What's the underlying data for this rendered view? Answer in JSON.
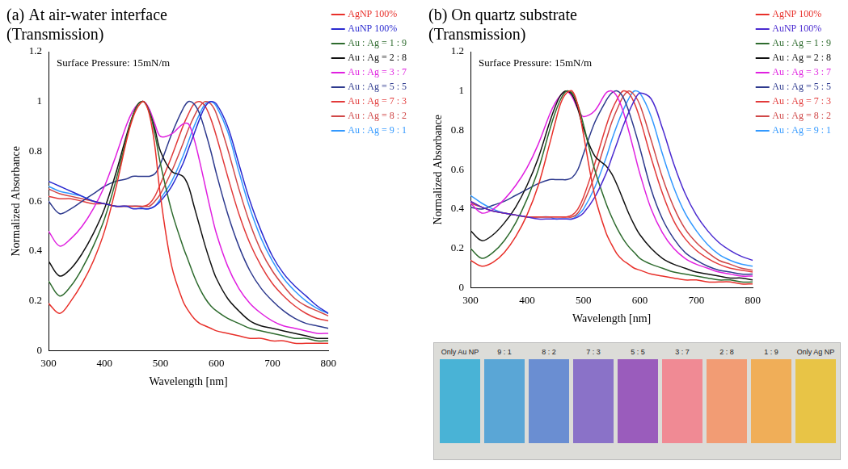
{
  "chart_data": [
    {
      "type": "line",
      "title": [
        "(a) At air-water interface",
        "(Transmission)"
      ],
      "annotation": "Surface Pressure: 15mN/m",
      "x_label": "Wavelength [nm]",
      "y_label": "Normalized Absorbance",
      "xlim": [
        300,
        800
      ],
      "xticks": [
        300,
        400,
        500,
        600,
        700,
        800
      ],
      "ylim": [
        0,
        1.2
      ],
      "yticks": [
        0,
        0.2,
        0.4,
        0.6,
        0.8,
        1,
        1.2
      ],
      "grid": false,
      "legend": "right",
      "x": [
        300,
        320,
        340,
        360,
        380,
        400,
        420,
        440,
        450,
        460,
        470,
        480,
        490,
        500,
        520,
        540,
        550,
        560,
        570,
        580,
        590,
        600,
        620,
        640,
        660,
        680,
        700,
        720,
        740,
        760,
        780,
        800
      ],
      "series": [
        {
          "name": "AgNP 100%",
          "color": "#e8302a",
          "values": [
            0.19,
            0.15,
            0.2,
            0.27,
            0.36,
            0.48,
            0.65,
            0.85,
            0.93,
            0.98,
            1.0,
            0.95,
            0.82,
            0.62,
            0.34,
            0.2,
            0.16,
            0.13,
            0.11,
            0.1,
            0.09,
            0.08,
            0.07,
            0.06,
            0.05,
            0.05,
            0.04,
            0.04,
            0.03,
            0.03,
            0.03,
            0.03
          ]
        },
        {
          "name": "AuNP 100%",
          "color": "#2a2ad0",
          "values": [
            0.68,
            0.66,
            0.64,
            0.62,
            0.6,
            0.59,
            0.58,
            0.58,
            0.57,
            0.57,
            0.57,
            0.57,
            0.58,
            0.6,
            0.66,
            0.75,
            0.81,
            0.87,
            0.93,
            0.98,
            1.0,
            0.99,
            0.9,
            0.75,
            0.6,
            0.48,
            0.38,
            0.31,
            0.26,
            0.22,
            0.18,
            0.15
          ]
        },
        {
          "name": "Au : Ag = 1 : 9",
          "color": "#2e6b2e",
          "values": [
            0.28,
            0.22,
            0.26,
            0.33,
            0.42,
            0.53,
            0.68,
            0.86,
            0.94,
            0.99,
            1.0,
            0.96,
            0.87,
            0.75,
            0.56,
            0.42,
            0.36,
            0.3,
            0.25,
            0.21,
            0.18,
            0.16,
            0.13,
            0.11,
            0.09,
            0.08,
            0.07,
            0.06,
            0.05,
            0.05,
            0.04,
            0.04
          ]
        },
        {
          "name": "Au : Ag = 2 : 8",
          "color": "#111111",
          "values": [
            0.36,
            0.3,
            0.33,
            0.39,
            0.47,
            0.57,
            0.71,
            0.87,
            0.94,
            0.99,
            1.0,
            0.96,
            0.89,
            0.8,
            0.72,
            0.7,
            0.66,
            0.58,
            0.5,
            0.42,
            0.35,
            0.29,
            0.21,
            0.16,
            0.12,
            0.1,
            0.09,
            0.08,
            0.07,
            0.06,
            0.05,
            0.05
          ]
        },
        {
          "name": "Au : Ag = 3 : 7",
          "color": "#e020e0",
          "values": [
            0.48,
            0.42,
            0.45,
            0.5,
            0.57,
            0.66,
            0.78,
            0.91,
            0.96,
            0.99,
            1.0,
            0.97,
            0.91,
            0.86,
            0.87,
            0.91,
            0.91,
            0.85,
            0.76,
            0.66,
            0.56,
            0.47,
            0.34,
            0.25,
            0.19,
            0.15,
            0.12,
            0.1,
            0.09,
            0.08,
            0.07,
            0.07
          ]
        },
        {
          "name": "Au : Ag = 5 : 5",
          "color": "#2e3a8e",
          "values": [
            0.6,
            0.55,
            0.57,
            0.6,
            0.63,
            0.66,
            0.68,
            0.69,
            0.7,
            0.7,
            0.7,
            0.7,
            0.71,
            0.75,
            0.87,
            0.97,
            1.0,
            0.99,
            0.95,
            0.88,
            0.8,
            0.71,
            0.55,
            0.42,
            0.32,
            0.25,
            0.2,
            0.16,
            0.13,
            0.11,
            0.1,
            0.09
          ]
        },
        {
          "name": "Au : Ag = 7 : 3",
          "color": "#e23a3a",
          "values": [
            0.62,
            0.61,
            0.61,
            0.6,
            0.59,
            0.59,
            0.58,
            0.58,
            0.58,
            0.58,
            0.58,
            0.59,
            0.62,
            0.67,
            0.78,
            0.9,
            0.95,
            0.99,
            1.0,
            0.98,
            0.93,
            0.86,
            0.7,
            0.55,
            0.43,
            0.34,
            0.27,
            0.22,
            0.18,
            0.15,
            0.13,
            0.12
          ]
        },
        {
          "name": "Au : Ag = 8 : 2",
          "color": "#d04848",
          "values": [
            0.65,
            0.63,
            0.62,
            0.61,
            0.6,
            0.59,
            0.58,
            0.58,
            0.58,
            0.58,
            0.58,
            0.58,
            0.6,
            0.63,
            0.72,
            0.83,
            0.89,
            0.94,
            0.98,
            1.0,
            0.99,
            0.95,
            0.81,
            0.65,
            0.51,
            0.4,
            0.32,
            0.26,
            0.21,
            0.18,
            0.16,
            0.14
          ]
        },
        {
          "name": "Au : Ag = 9 : 1",
          "color": "#3399ff",
          "values": [
            0.66,
            0.64,
            0.63,
            0.62,
            0.6,
            0.59,
            0.58,
            0.58,
            0.58,
            0.58,
            0.57,
            0.57,
            0.58,
            0.61,
            0.68,
            0.78,
            0.84,
            0.9,
            0.95,
            0.99,
            1.0,
            0.98,
            0.88,
            0.72,
            0.57,
            0.45,
            0.36,
            0.29,
            0.24,
            0.2,
            0.17,
            0.15
          ]
        }
      ]
    },
    {
      "type": "line",
      "title": [
        "(b) On quartz substrate",
        "(Transmission)"
      ],
      "annotation": "Surface Pressure: 15mN/m",
      "x_label": "Wavelength [nm]",
      "y_label": "Normalized Absorbance",
      "xlim": [
        300,
        800
      ],
      "xticks": [
        300,
        400,
        500,
        600,
        700,
        800
      ],
      "ylim": [
        0,
        1.2
      ],
      "yticks": [
        0,
        0.2,
        0.4,
        0.6,
        0.8,
        1,
        1.2
      ],
      "grid": false,
      "legend": "right",
      "x": [
        300,
        320,
        340,
        360,
        380,
        400,
        420,
        440,
        450,
        460,
        470,
        480,
        490,
        500,
        520,
        540,
        550,
        560,
        570,
        580,
        590,
        600,
        620,
        640,
        660,
        680,
        700,
        720,
        740,
        760,
        780,
        800
      ],
      "series": [
        {
          "name": "AgNP 100%",
          "color": "#e8302a",
          "values": [
            0.14,
            0.11,
            0.13,
            0.18,
            0.26,
            0.37,
            0.52,
            0.73,
            0.84,
            0.94,
            0.99,
            1.0,
            0.93,
            0.78,
            0.47,
            0.28,
            0.22,
            0.17,
            0.14,
            0.12,
            0.1,
            0.09,
            0.07,
            0.06,
            0.05,
            0.04,
            0.04,
            0.03,
            0.03,
            0.03,
            0.02,
            0.02
          ]
        },
        {
          "name": "AuNP 100%",
          "color": "#4a2ad0",
          "values": [
            0.44,
            0.41,
            0.39,
            0.38,
            0.37,
            0.36,
            0.35,
            0.35,
            0.35,
            0.35,
            0.35,
            0.35,
            0.36,
            0.38,
            0.46,
            0.58,
            0.66,
            0.74,
            0.82,
            0.89,
            0.95,
            0.99,
            0.96,
            0.81,
            0.63,
            0.48,
            0.37,
            0.29,
            0.23,
            0.19,
            0.16,
            0.14
          ]
        },
        {
          "name": "Au : Ag = 1 : 9",
          "color": "#2e6b2e",
          "values": [
            0.2,
            0.15,
            0.18,
            0.24,
            0.33,
            0.45,
            0.6,
            0.8,
            0.89,
            0.96,
            1.0,
            0.99,
            0.93,
            0.83,
            0.6,
            0.43,
            0.36,
            0.3,
            0.25,
            0.21,
            0.18,
            0.15,
            0.12,
            0.1,
            0.08,
            0.07,
            0.06,
            0.05,
            0.04,
            0.04,
            0.03,
            0.03
          ]
        },
        {
          "name": "Au : Ag = 2 : 8",
          "color": "#111111",
          "values": [
            0.29,
            0.24,
            0.27,
            0.33,
            0.41,
            0.52,
            0.66,
            0.84,
            0.92,
            0.98,
            1.0,
            0.98,
            0.91,
            0.81,
            0.67,
            0.62,
            0.58,
            0.52,
            0.45,
            0.38,
            0.32,
            0.27,
            0.2,
            0.15,
            0.12,
            0.1,
            0.08,
            0.07,
            0.06,
            0.05,
            0.05,
            0.04
          ]
        },
        {
          "name": "Au : Ag = 3 : 7",
          "color": "#e020e0",
          "values": [
            0.43,
            0.38,
            0.4,
            0.45,
            0.52,
            0.61,
            0.73,
            0.88,
            0.94,
            0.98,
            1.0,
            0.97,
            0.91,
            0.87,
            0.9,
            0.99,
            1.0,
            0.97,
            0.9,
            0.8,
            0.69,
            0.58,
            0.4,
            0.28,
            0.2,
            0.15,
            0.12,
            0.1,
            0.08,
            0.07,
            0.06,
            0.06
          ]
        },
        {
          "name": "Au : Ag = 5 : 5",
          "color": "#2e3a8e",
          "values": [
            0.41,
            0.4,
            0.42,
            0.44,
            0.47,
            0.5,
            0.53,
            0.55,
            0.55,
            0.55,
            0.55,
            0.56,
            0.6,
            0.68,
            0.84,
            0.95,
            0.99,
            1.0,
            0.97,
            0.9,
            0.81,
            0.71,
            0.5,
            0.35,
            0.25,
            0.18,
            0.14,
            0.11,
            0.09,
            0.08,
            0.07,
            0.07
          ]
        },
        {
          "name": "Au : Ag = 7 : 3",
          "color": "#e23a3a",
          "values": [
            0.44,
            0.41,
            0.39,
            0.38,
            0.37,
            0.36,
            0.36,
            0.36,
            0.36,
            0.36,
            0.36,
            0.37,
            0.4,
            0.46,
            0.63,
            0.82,
            0.9,
            0.96,
            1.0,
            0.99,
            0.94,
            0.86,
            0.66,
            0.48,
            0.34,
            0.25,
            0.19,
            0.15,
            0.12,
            0.1,
            0.09,
            0.08
          ]
        },
        {
          "name": "Au : Ag = 8 : 2",
          "color": "#d04848",
          "values": [
            0.43,
            0.41,
            0.39,
            0.38,
            0.37,
            0.36,
            0.36,
            0.36,
            0.36,
            0.36,
            0.36,
            0.36,
            0.38,
            0.43,
            0.57,
            0.75,
            0.84,
            0.91,
            0.97,
            1.0,
            0.98,
            0.93,
            0.75,
            0.56,
            0.41,
            0.3,
            0.23,
            0.18,
            0.14,
            0.12,
            0.1,
            0.09
          ]
        },
        {
          "name": "Au : Ag = 9 : 1",
          "color": "#3399ff",
          "values": [
            0.47,
            0.43,
            0.4,
            0.38,
            0.37,
            0.36,
            0.36,
            0.36,
            0.35,
            0.35,
            0.35,
            0.35,
            0.37,
            0.4,
            0.51,
            0.66,
            0.75,
            0.83,
            0.9,
            0.96,
            1.0,
            0.99,
            0.87,
            0.68,
            0.51,
            0.38,
            0.29,
            0.22,
            0.17,
            0.14,
            0.12,
            0.11
          ]
        }
      ]
    }
  ],
  "photo": {
    "samples": [
      {
        "label": "Only Au NP",
        "color": "#49b3d6"
      },
      {
        "label": "9 : 1",
        "color": "#5aa6d6"
      },
      {
        "label": "8 : 2",
        "color": "#6a8ed2"
      },
      {
        "label": "7 : 3",
        "color": "#8a72c8"
      },
      {
        "label": "5 : 5",
        "color": "#9a5cbc"
      },
      {
        "label": "3 : 7",
        "color": "#f08a94"
      },
      {
        "label": "2 : 8",
        "color": "#f29c74"
      },
      {
        "label": "1 : 9",
        "color": "#f0ae58"
      },
      {
        "label": "Only Ag NP",
        "color": "#e8c446"
      }
    ]
  }
}
